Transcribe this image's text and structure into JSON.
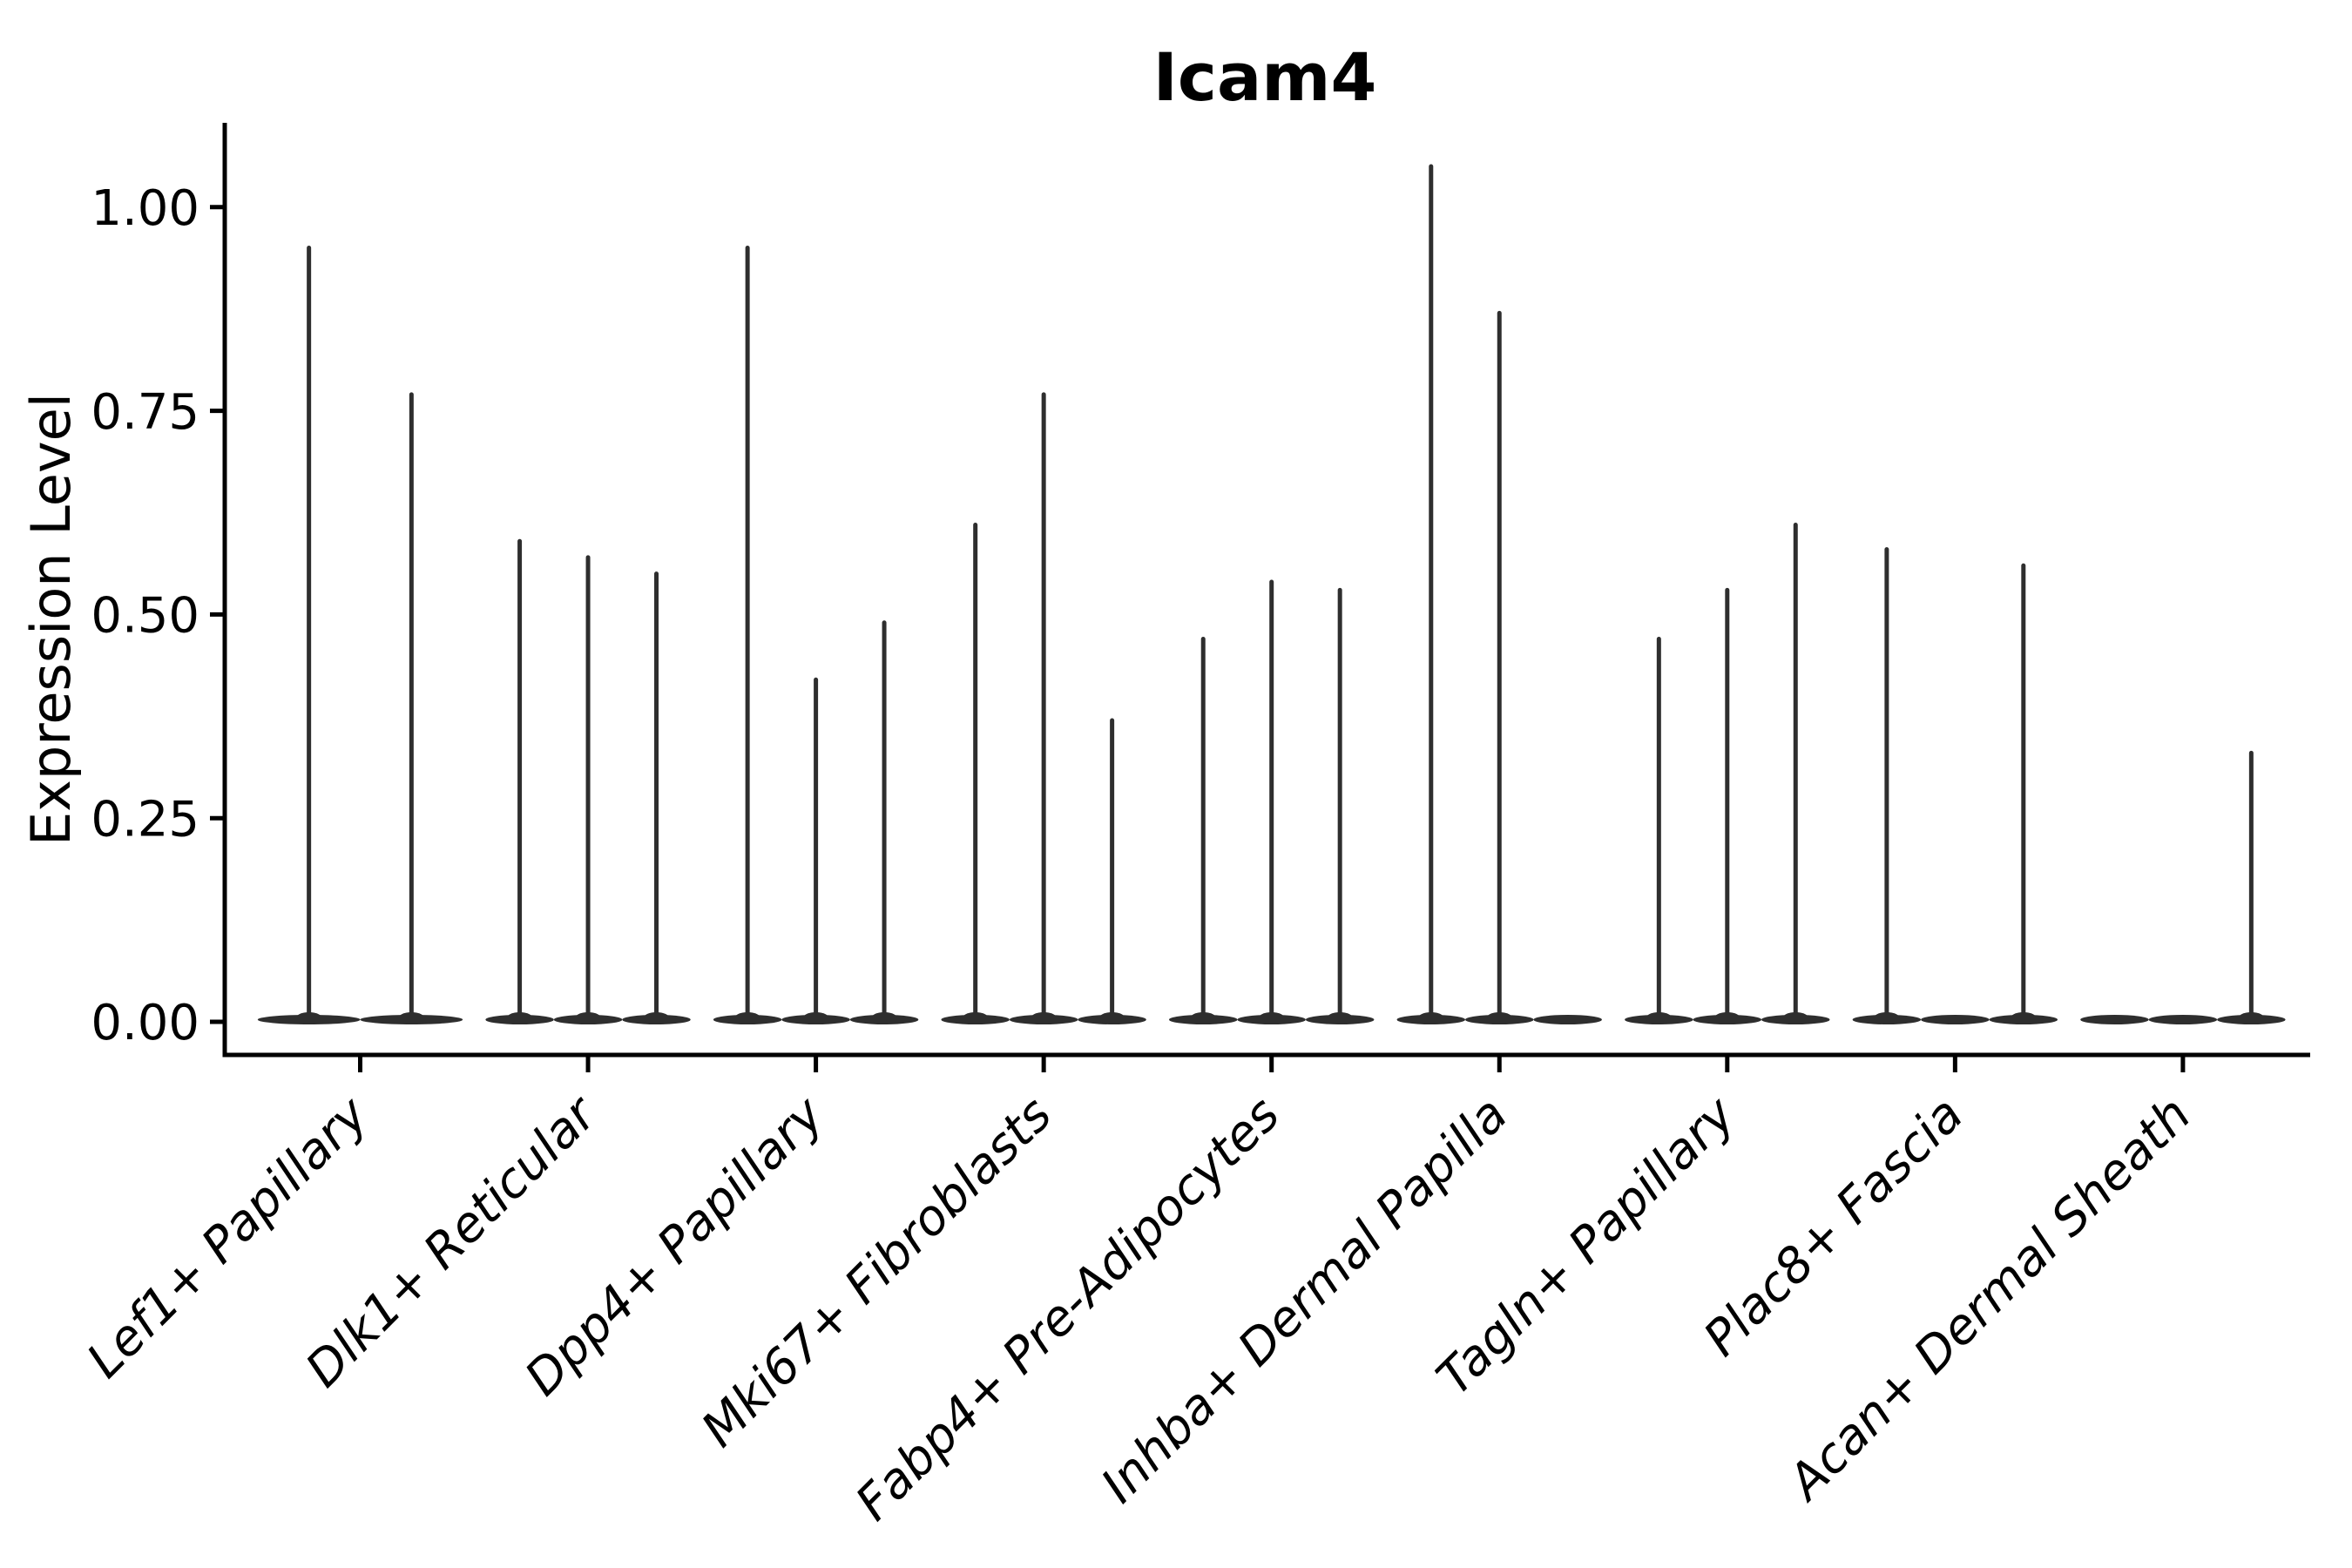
{
  "figure": {
    "background": "#ffffff"
  },
  "chart_data": {
    "type": "violin",
    "title": "Icam4",
    "xlabel": "",
    "ylabel": "Expression Level",
    "ylim": [
      -0.04,
      1.1
    ],
    "grid": false,
    "legend": "none",
    "yticks": {
      "values": [
        0,
        0.25,
        0.5,
        0.75,
        1.0
      ],
      "labels": [
        "0.00",
        "0.25",
        "0.50",
        "0.75",
        "1.00"
      ]
    },
    "categories": [
      "Lef1+ Papillary",
      "Dlk1+ Reticular",
      "Dpp4+ Papillary",
      "Mki67+ Fibroblasts",
      "Fabp4+ Pre-Adipocytes",
      "Inhba+ Dermal Papilla",
      "Tagln+ Papillary",
      "Plac8+ Fascia",
      "Acan+ Dermal Sheath"
    ],
    "groups": [
      {
        "label": "Lef1+ Papillary",
        "violin_maxima": [
          0.95,
          0.77
        ]
      },
      {
        "label": "Dlk1+ Reticular",
        "violin_maxima": [
          0.59,
          0.57,
          0.55
        ]
      },
      {
        "label": "Dpp4+ Papillary",
        "violin_maxima": [
          0.95,
          0.42,
          0.49
        ]
      },
      {
        "label": "Mki67+ Fibroblasts",
        "violin_maxima": [
          0.61,
          0.77,
          0.37
        ]
      },
      {
        "label": "Fabp4+ Pre-Adipocytes",
        "violin_maxima": [
          0.47,
          0.54,
          0.53
        ]
      },
      {
        "label": "Inhba+ Dermal Papilla",
        "violin_maxima": [
          1.05,
          0.87,
          0
        ]
      },
      {
        "label": "Tagln+ Papillary",
        "violin_maxima": [
          0.47,
          0.53,
          0.61
        ]
      },
      {
        "label": "Plac8+ Fascia",
        "violin_maxima": [
          0.58,
          0,
          0.56
        ]
      },
      {
        "label": "Acan+ Dermal Sheath",
        "violin_maxima": [
          0,
          0,
          0.33
        ]
      }
    ],
    "colors": {
      "violin": "#2e2e2e",
      "axis": "#000000",
      "text": "#000000"
    }
  }
}
